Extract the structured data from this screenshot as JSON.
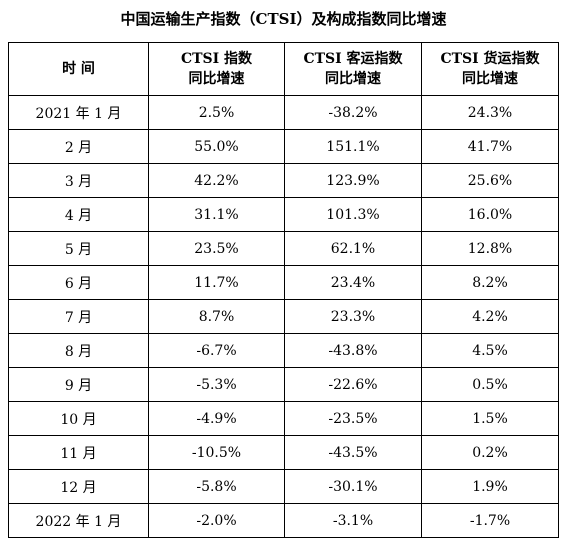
{
  "title": "中国运输生产指数（CTSI）及构成指数同比增速",
  "headers": {
    "time": "时  间",
    "ctsi_line1": "CTSI 指数",
    "ctsi_line2": "同比增速",
    "passenger_line1": "CTSI 客运指数",
    "passenger_line2": "同比增速",
    "freight_line1": "CTSI 货运指数",
    "freight_line2": "同比增速"
  },
  "rows": [
    {
      "period": "2021 年 1 月",
      "ctsi": "2.5%",
      "passenger": "-38.2%",
      "freight": "24.3%"
    },
    {
      "period": "2 月",
      "ctsi": "55.0%",
      "passenger": "151.1%",
      "freight": "41.7%"
    },
    {
      "period": "3 月",
      "ctsi": "42.2%",
      "passenger": "123.9%",
      "freight": "25.6%"
    },
    {
      "period": "4 月",
      "ctsi": "31.1%",
      "passenger": "101.3%",
      "freight": "16.0%"
    },
    {
      "period": "5 月",
      "ctsi": "23.5%",
      "passenger": "62.1%",
      "freight": "12.8%"
    },
    {
      "period": "6 月",
      "ctsi": "11.7%",
      "passenger": "23.4%",
      "freight": "8.2%"
    },
    {
      "period": "7 月",
      "ctsi": "8.7%",
      "passenger": "23.3%",
      "freight": "4.2%"
    },
    {
      "period": "8 月",
      "ctsi": "-6.7%",
      "passenger": "-43.8%",
      "freight": "4.5%"
    },
    {
      "period": "9 月",
      "ctsi": "-5.3%",
      "passenger": "-22.6%",
      "freight": "0.5%"
    },
    {
      "period": "10 月",
      "ctsi": "-4.9%",
      "passenger": "-23.5%",
      "freight": "1.5%"
    },
    {
      "period": "11 月",
      "ctsi": "-10.5%",
      "passenger": "-43.5%",
      "freight": "0.2%"
    },
    {
      "period": "12 月",
      "ctsi": "-5.8%",
      "passenger": "-30.1%",
      "freight": "1.9%"
    },
    {
      "period": "2022 年 1 月",
      "ctsi": "-2.0%",
      "passenger": "-3.1%",
      "freight": "-1.7%"
    }
  ]
}
